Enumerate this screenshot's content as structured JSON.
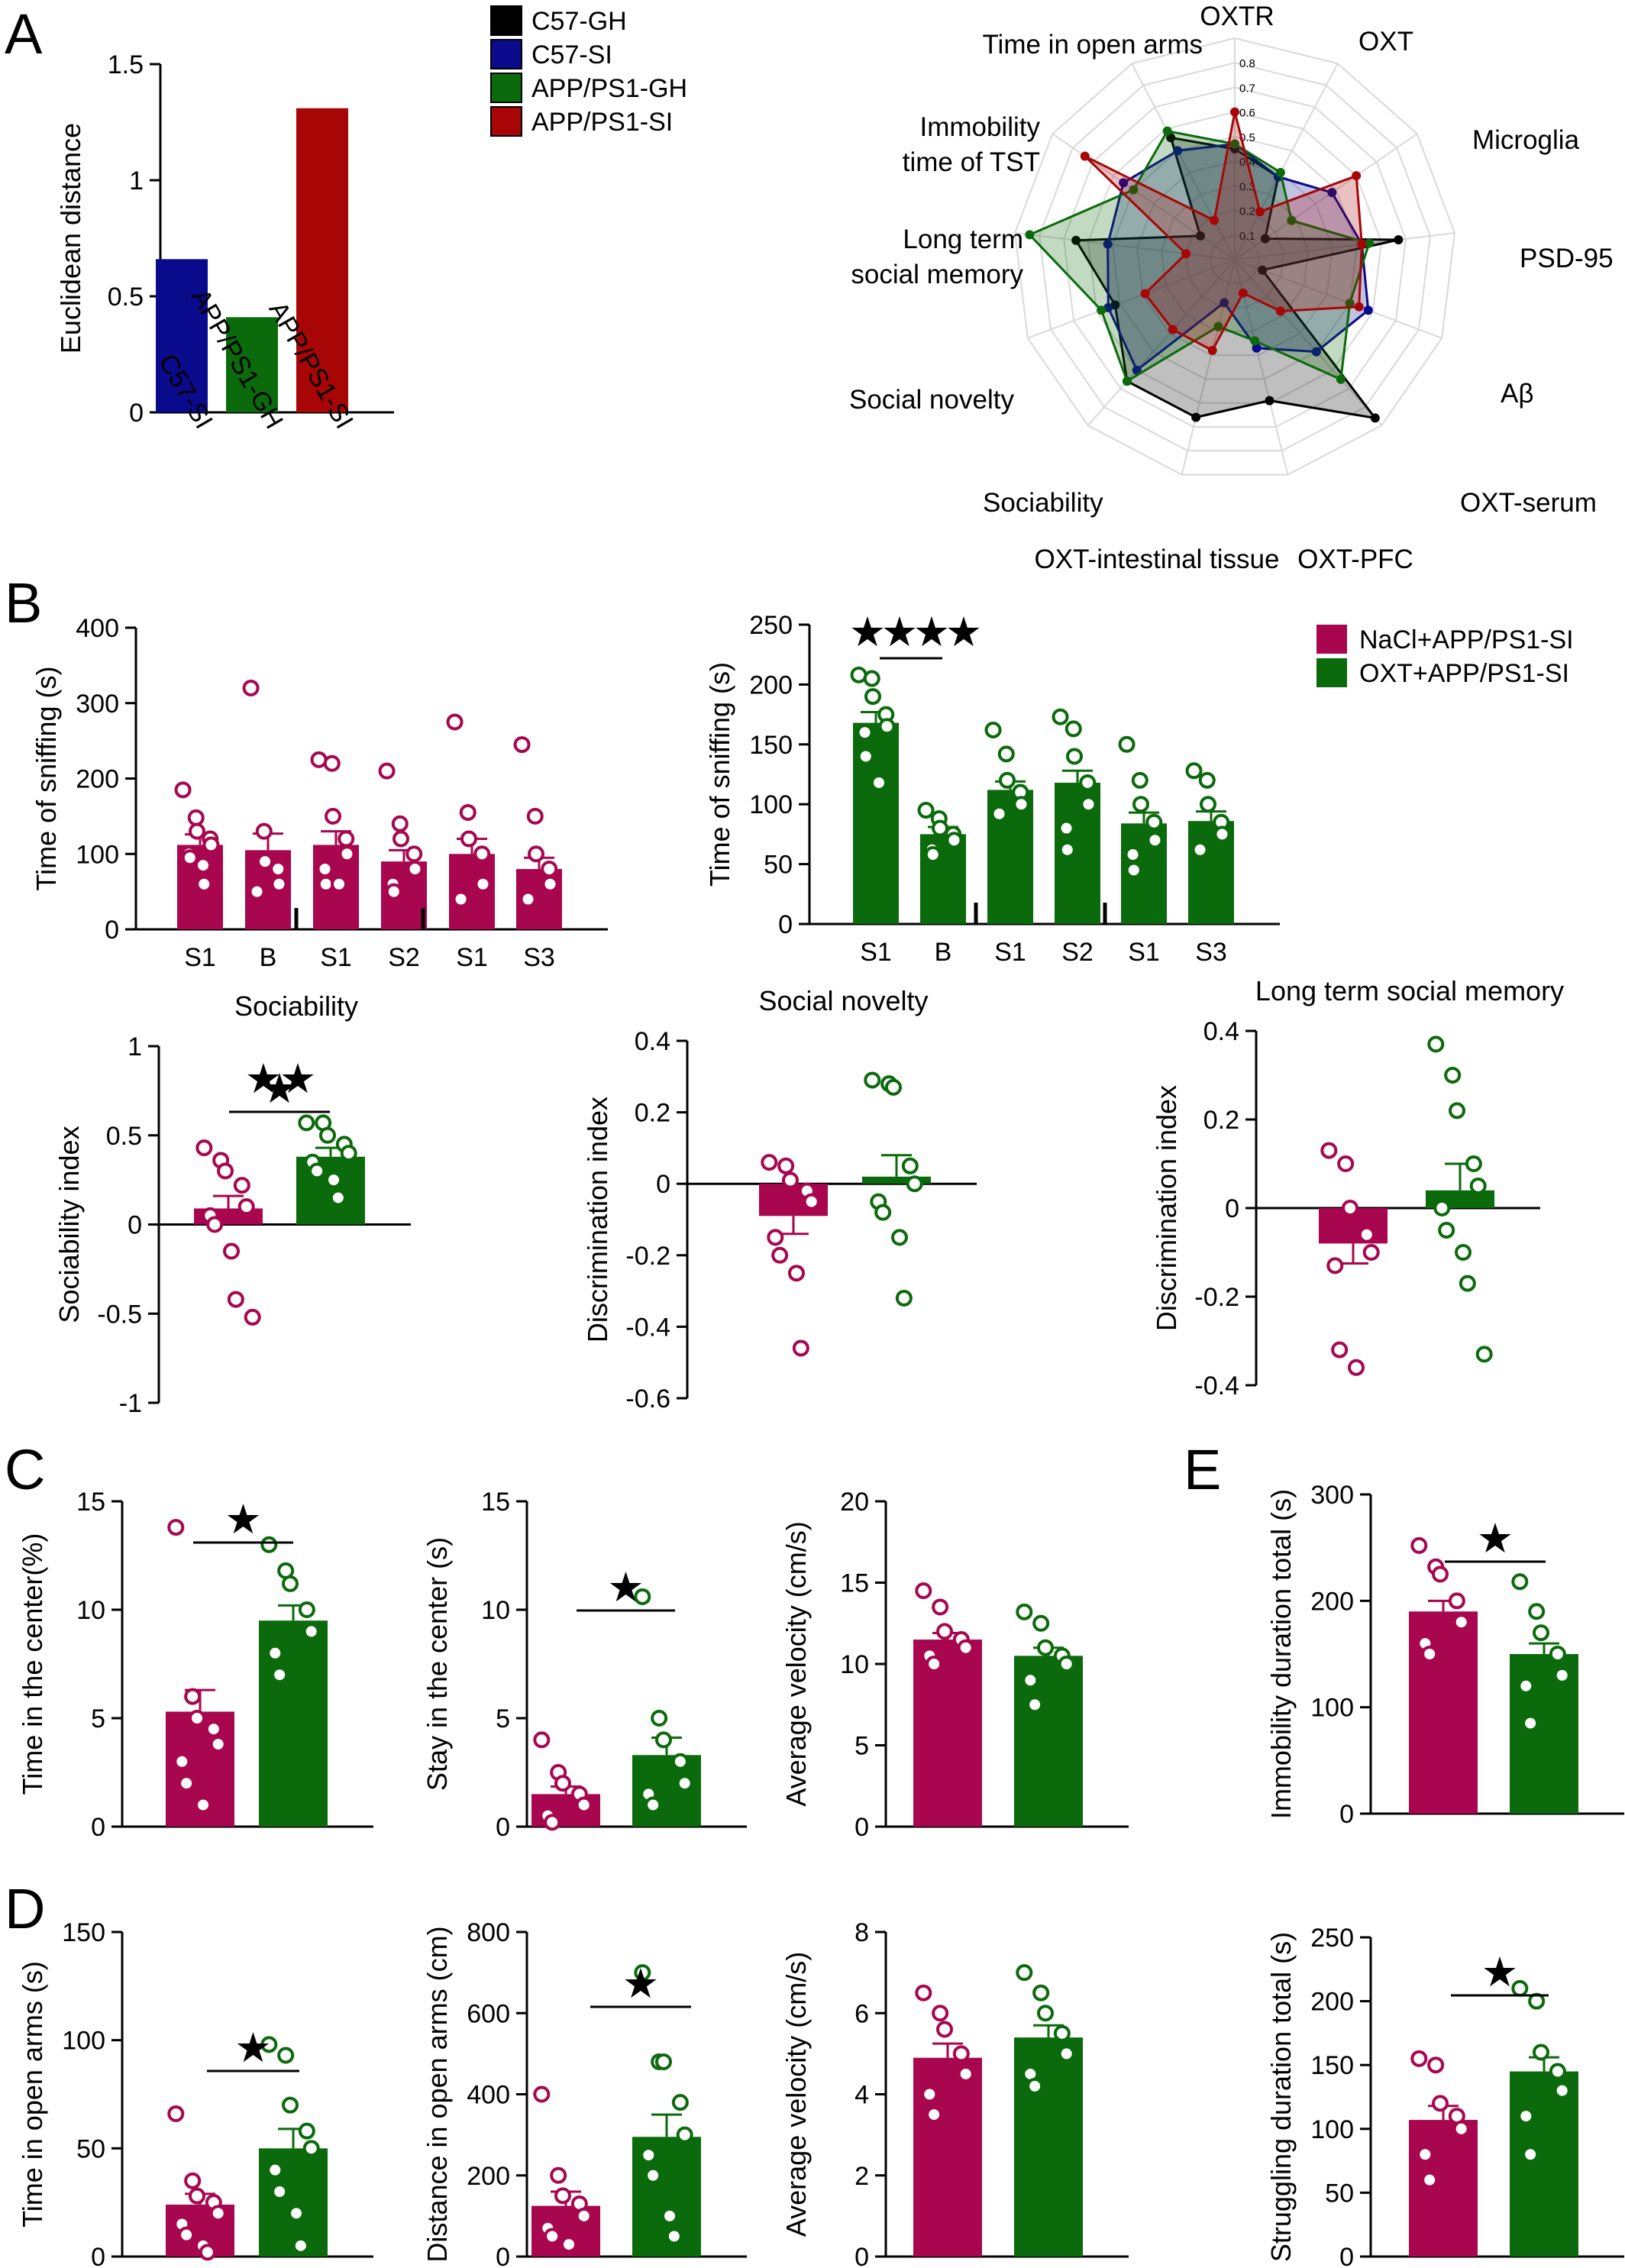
{
  "colors": {
    "C57-GH": "#000000",
    "C57-SI": "#0a0a8c",
    "APP/PS1-GH": "#0b6a0b",
    "APP/PS1-SI": "#a80606",
    "NaCl": "#a8064e",
    "OXT": "#0b6a0b",
    "grid": "#d9d9d9"
  },
  "panel_labels": [
    "A",
    "B",
    "C",
    "D",
    "E"
  ],
  "star_label": "★",
  "chart_data": [
    {
      "id": "euclid",
      "type": "bar",
      "ylabel": "Euclidean distance",
      "ylim": [
        0,
        1.5
      ],
      "yticks": [
        "0",
        "0.5",
        "1",
        "1.5"
      ],
      "categories": [
        "C57-SI",
        "APP/PS1-GH",
        "APP/PS1-SI"
      ],
      "values": [
        0.66,
        0.41,
        1.31
      ],
      "legend": [
        "C57-GH",
        "C57-SI",
        "APP/PS1-GH",
        "APP/PS1-SI"
      ]
    },
    {
      "id": "radar",
      "type": "radar",
      "axes": [
        "OXTR",
        "OXT",
        "Microglia",
        "PSD-95",
        "Aβ",
        "OXT-serum",
        "OXT-PFC",
        "OXT-intestinal tissue",
        "Sociability",
        "Social novelty",
        "Long term\nsocial memory",
        "Immobility\ntime of TST",
        "Time in open arms"
      ],
      "rings": [
        "0.1",
        "0.2",
        "0.3",
        "0.4",
        "0.5",
        "0.6",
        "0.7",
        "0.8"
      ],
      "rmax": 0.9,
      "series": [
        {
          "name": "C57-GH",
          "values": [
            0.45,
            0.38,
            0.15,
            0.67,
            0.12,
            0.86,
            0.59,
            0.66,
            0.66,
            0.52,
            0.65,
            0.17,
            0.56
          ]
        },
        {
          "name": "C57-SI",
          "values": [
            0.47,
            0.38,
            0.48,
            0.52,
            0.58,
            0.5,
            0.37,
            0.18,
            0.6,
            0.55,
            0.52,
            0.55,
            0.5
          ]
        },
        {
          "name": "APP/PS1-GH",
          "values": [
            0.47,
            0.4,
            0.28,
            0.55,
            0.5,
            0.65,
            0.34,
            0.28,
            0.66,
            0.58,
            0.84,
            0.5,
            0.59
          ]
        },
        {
          "name": "APP/PS1-SI",
          "values": [
            0.6,
            0.22,
            0.6,
            0.52,
            0.54,
            0.28,
            0.14,
            0.38,
            0.38,
            0.39,
            0.2,
            0.74,
            0.18
          ]
        }
      ]
    },
    {
      "id": "b1",
      "type": "bar",
      "ylabel": "Time of sniffing (s)",
      "ylim": [
        0,
        400
      ],
      "yticks": [
        "0",
        "100",
        "200",
        "300",
        "400"
      ],
      "categories": [
        "S1",
        "B",
        "S1",
        "S2",
        "S1",
        "S3"
      ],
      "values": [
        112,
        105,
        112,
        90,
        100,
        80
      ],
      "sem": [
        14,
        22,
        18,
        15,
        20,
        15
      ],
      "points": [
        [
          185,
          148,
          130,
          120,
          112,
          100,
          95,
          85,
          60
        ],
        [
          320,
          130,
          90,
          80,
          60,
          50
        ],
        [
          225,
          220,
          150,
          120,
          100,
          80,
          60,
          60
        ],
        [
          210,
          140,
          120,
          100,
          80,
          60,
          50
        ],
        [
          275,
          155,
          120,
          100,
          60,
          40
        ],
        [
          245,
          150,
          100,
          80,
          60,
          40
        ]
      ],
      "colors": [
        "NaCl",
        "NaCl",
        "NaCl",
        "NaCl",
        "NaCl",
        "NaCl"
      ]
    },
    {
      "id": "b2",
      "type": "bar",
      "ylabel": "Time of sniffing (s)",
      "ylim": [
        0,
        250
      ],
      "yticks": [
        "0",
        "50",
        "100",
        "150",
        "200",
        "250"
      ],
      "categories": [
        "S1",
        "B",
        "S1",
        "S2",
        "S1",
        "S3"
      ],
      "values": [
        168,
        75,
        112,
        118,
        84,
        86
      ],
      "sem": [
        9,
        6,
        7,
        10,
        9,
        8
      ],
      "points": [
        [
          208,
          205,
          190,
          175,
          165,
          160,
          140,
          118
        ],
        [
          95,
          88,
          80,
          75,
          70,
          62,
          58
        ],
        [
          162,
          142,
          120,
          110,
          100,
          92
        ],
        [
          173,
          163,
          140,
          118,
          100,
          80,
          62
        ],
        [
          150,
          120,
          100,
          85,
          70,
          58,
          45
        ],
        [
          128,
          120,
          100,
          85,
          75,
          62
        ]
      ],
      "colors": [
        "OXT",
        "OXT",
        "OXT",
        "OXT",
        "OXT",
        "OXT"
      ]
    },
    {
      "id": "soc",
      "type": "bar",
      "title": "Sociability",
      "ylabel": "Sociability index",
      "ylim": [
        -1,
        1
      ],
      "yticks": [
        "-1",
        "-0.5",
        "0",
        "0.5",
        "1"
      ],
      "categories": [
        "",
        ""
      ],
      "values": [
        0.09,
        0.38
      ],
      "sem": [
        0.07,
        0.05
      ],
      "points": [
        [
          0.43,
          0.36,
          0.3,
          0.22,
          0.1,
          0.05,
          0.0,
          -0.15,
          -0.42,
          -0.52
        ],
        [
          0.57,
          0.57,
          0.5,
          0.45,
          0.4,
          0.35,
          0.3,
          0.25,
          0.15
        ]
      ],
      "colors": [
        "NaCl",
        "OXT"
      ]
    },
    {
      "id": "nov",
      "type": "bar",
      "title": "Social novelty",
      "ylabel": "Discrimination index",
      "ylim": [
        -0.6,
        0.4
      ],
      "yticks": [
        "-0.6",
        "-0.4",
        "-0.2",
        "0",
        "0.2",
        "0.4"
      ],
      "categories": [
        "",
        ""
      ],
      "values": [
        -0.09,
        0.02
      ],
      "sem": [
        0.05,
        0.06
      ],
      "points": [
        [
          0.06,
          0.05,
          0.01,
          -0.02,
          -0.05,
          -0.15,
          -0.2,
          -0.25,
          -0.46
        ],
        [
          0.29,
          0.28,
          0.27,
          0.05,
          0.0,
          -0.05,
          -0.08,
          -0.15,
          -0.32
        ]
      ],
      "colors": [
        "NaCl",
        "OXT"
      ]
    },
    {
      "id": "ltm",
      "type": "bar",
      "title": "Long term social memory",
      "ylabel": "Discrimination index",
      "ylim": [
        -0.4,
        0.4
      ],
      "yticks": [
        "-0.4",
        "-0.2",
        "0",
        "0.2",
        "0.4"
      ],
      "categories": [
        "",
        ""
      ],
      "values": [
        -0.08,
        0.04
      ],
      "sem": [
        0.045,
        0.06
      ],
      "points": [
        [
          0.13,
          0.1,
          0.0,
          -0.06,
          -0.1,
          -0.13,
          -0.32,
          -0.36
        ],
        [
          0.37,
          0.3,
          0.22,
          0.1,
          0.05,
          0.0,
          -0.05,
          -0.1,
          -0.17,
          -0.33
        ]
      ],
      "colors": [
        "NaCl",
        "OXT"
      ]
    },
    {
      "id": "c1",
      "type": "bar",
      "ylabel": "Time in the center(%)",
      "ylim": [
        0,
        15
      ],
      "yticks": [
        "0",
        "5",
        "10",
        "15"
      ],
      "categories": [
        "",
        ""
      ],
      "values": [
        5.3,
        9.5
      ],
      "sem": [
        1.0,
        0.7
      ],
      "points": [
        [
          13.8,
          6.0,
          5.0,
          4.5,
          3.8,
          3.0,
          2.0,
          1.0
        ],
        [
          13.0,
          11.8,
          11.2,
          10.0,
          9.0,
          8.0,
          7.0
        ]
      ],
      "colors": [
        "NaCl",
        "OXT"
      ]
    },
    {
      "id": "c2",
      "type": "bar",
      "ylabel": "Stay in the center (s)",
      "ylim": [
        0,
        15
      ],
      "yticks": [
        "0",
        "5",
        "10",
        "15"
      ],
      "categories": [
        "",
        ""
      ],
      "values": [
        1.5,
        3.3
      ],
      "sem": [
        0.35,
        0.8
      ],
      "points": [
        [
          4.0,
          2.5,
          2.0,
          1.5,
          1.0,
          0.5,
          0.2
        ],
        [
          10.6,
          5.0,
          4.0,
          3.0,
          2.0,
          1.5,
          1.0
        ]
      ],
      "colors": [
        "NaCl",
        "OXT"
      ]
    },
    {
      "id": "c3",
      "type": "bar",
      "ylabel": "Average velocity (cm/s)",
      "ylim": [
        0,
        20
      ],
      "yticks": [
        "0",
        "5",
        "10",
        "15",
        "20"
      ],
      "categories": [
        "",
        ""
      ],
      "values": [
        11.5,
        10.5
      ],
      "sem": [
        0.4,
        0.5
      ],
      "points": [
        [
          14.5,
          13.5,
          12.0,
          11.5,
          11.0,
          10.5,
          10.0
        ],
        [
          13.2,
          12.5,
          11.0,
          10.5,
          10.0,
          9.0,
          7.5
        ]
      ],
      "colors": [
        "NaCl",
        "OXT"
      ]
    },
    {
      "id": "e1",
      "type": "bar",
      "ylabel": "Immobility duration total (s)",
      "ylim": [
        0,
        300
      ],
      "yticks": [
        "0",
        "100",
        "200",
        "300"
      ],
      "categories": [
        "",
        ""
      ],
      "values": [
        190,
        150
      ],
      "sem": [
        10,
        10
      ],
      "points": [
        [
          252,
          232,
          225,
          200,
          180,
          160,
          150
        ],
        [
          218,
          190,
          170,
          150,
          130,
          120,
          85
        ]
      ],
      "colors": [
        "NaCl",
        "OXT"
      ]
    },
    {
      "id": "d1",
      "type": "bar",
      "ylabel": "Time in open arms (s)",
      "ylim": [
        0,
        150
      ],
      "yticks": [
        "0",
        "50",
        "100",
        "150"
      ],
      "categories": [
        "",
        ""
      ],
      "values": [
        24,
        50
      ],
      "sem": [
        5,
        9
      ],
      "points": [
        [
          66,
          35,
          28,
          25,
          20,
          15,
          10,
          5,
          2
        ],
        [
          98,
          93,
          70,
          58,
          50,
          40,
          30,
          20,
          5
        ]
      ],
      "colors": [
        "NaCl",
        "OXT"
      ]
    },
    {
      "id": "d2",
      "type": "bar",
      "ylabel": "Distance in open arms (cm)",
      "ylim": [
        0,
        800
      ],
      "yticks": [
        "0",
        "200",
        "400",
        "600",
        "800"
      ],
      "categories": [
        "",
        ""
      ],
      "values": [
        125,
        295
      ],
      "sem": [
        35,
        55
      ],
      "points": [
        [
          400,
          200,
          150,
          130,
          100,
          70,
          50,
          30
        ],
        [
          700,
          480,
          480,
          380,
          300,
          250,
          200,
          100,
          50
        ]
      ],
      "colors": [
        "NaCl",
        "OXT"
      ]
    },
    {
      "id": "d3",
      "type": "bar",
      "ylabel": "Average velocity (cm/s)",
      "ylim": [
        0,
        8
      ],
      "yticks": [
        "0",
        "2",
        "4",
        "6",
        "8"
      ],
      "categories": [
        "",
        ""
      ],
      "values": [
        4.9,
        5.4
      ],
      "sem": [
        0.35,
        0.3
      ],
      "points": [
        [
          6.5,
          6.0,
          5.6,
          5.0,
          4.5,
          4.0,
          3.5
        ],
        [
          7.0,
          6.5,
          6.0,
          5.5,
          5.0,
          4.5,
          4.2
        ]
      ],
      "colors": [
        "NaCl",
        "OXT"
      ]
    },
    {
      "id": "e2",
      "type": "bar",
      "ylabel": "Struggling duration total (s)",
      "ylim": [
        0,
        250
      ],
      "yticks": [
        "0",
        "50",
        "100",
        "150",
        "200",
        "250"
      ],
      "categories": [
        "",
        ""
      ],
      "values": [
        107,
        145
      ],
      "sem": [
        11,
        11
      ],
      "points": [
        [
          155,
          150,
          120,
          110,
          100,
          80,
          60
        ],
        [
          210,
          200,
          160,
          145,
          130,
          110,
          80
        ]
      ],
      "colors": [
        "NaCl",
        "OXT"
      ]
    }
  ],
  "group_legend": [
    "NaCl+APP/PS1-SI",
    "OXT+APP/PS1-SI"
  ]
}
